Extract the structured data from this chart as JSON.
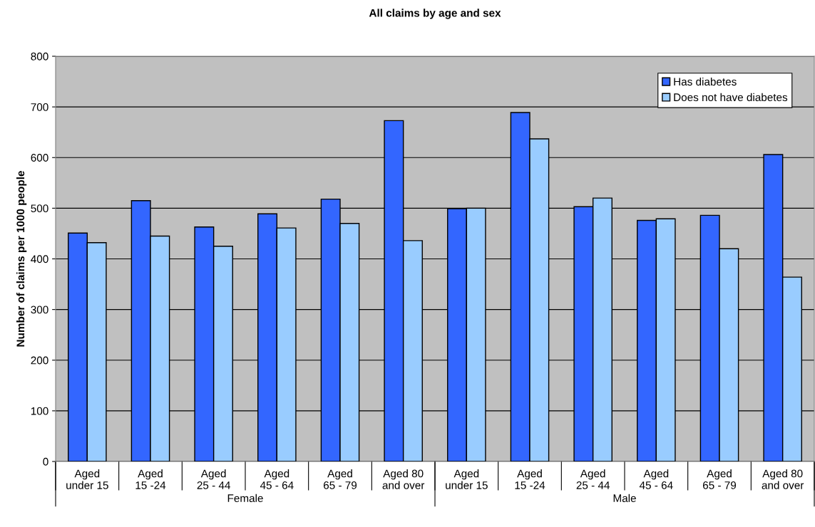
{
  "chart_data": {
    "type": "bar",
    "title": "All claims by age and sex",
    "ylabel": "Number of claims per 1000 people",
    "categories": [
      "Aged\nunder 15",
      "Aged\n15 -24",
      "Aged\n25 - 44",
      "Aged\n45 - 64",
      "Aged\n65 - 79",
      "Aged 80\nand over",
      "Aged\nunder 15",
      "Aged\n15 -24",
      "Aged\n25 - 44",
      "Aged\n45 - 64",
      "Aged\n65 - 79",
      "Aged 80\nand over"
    ],
    "series": [
      {
        "name": "Has diabetes",
        "color": "#3366ff",
        "values": [
          451,
          515,
          463,
          489,
          518,
          673,
          499,
          689,
          503,
          476,
          486,
          606
        ]
      },
      {
        "name": "Does not have diabetes",
        "color": "#99ccff",
        "values": [
          432,
          445,
          425,
          461,
          470,
          436,
          500,
          637,
          520,
          479,
          420,
          364
        ]
      }
    ],
    "annotations": [
      "Female",
      "Male"
    ],
    "ylim": [
      0,
      800
    ],
    "yticks": [
      0,
      100,
      200,
      300,
      400,
      500,
      600,
      700,
      800
    ],
    "grid": "y",
    "legend": "top right"
  }
}
